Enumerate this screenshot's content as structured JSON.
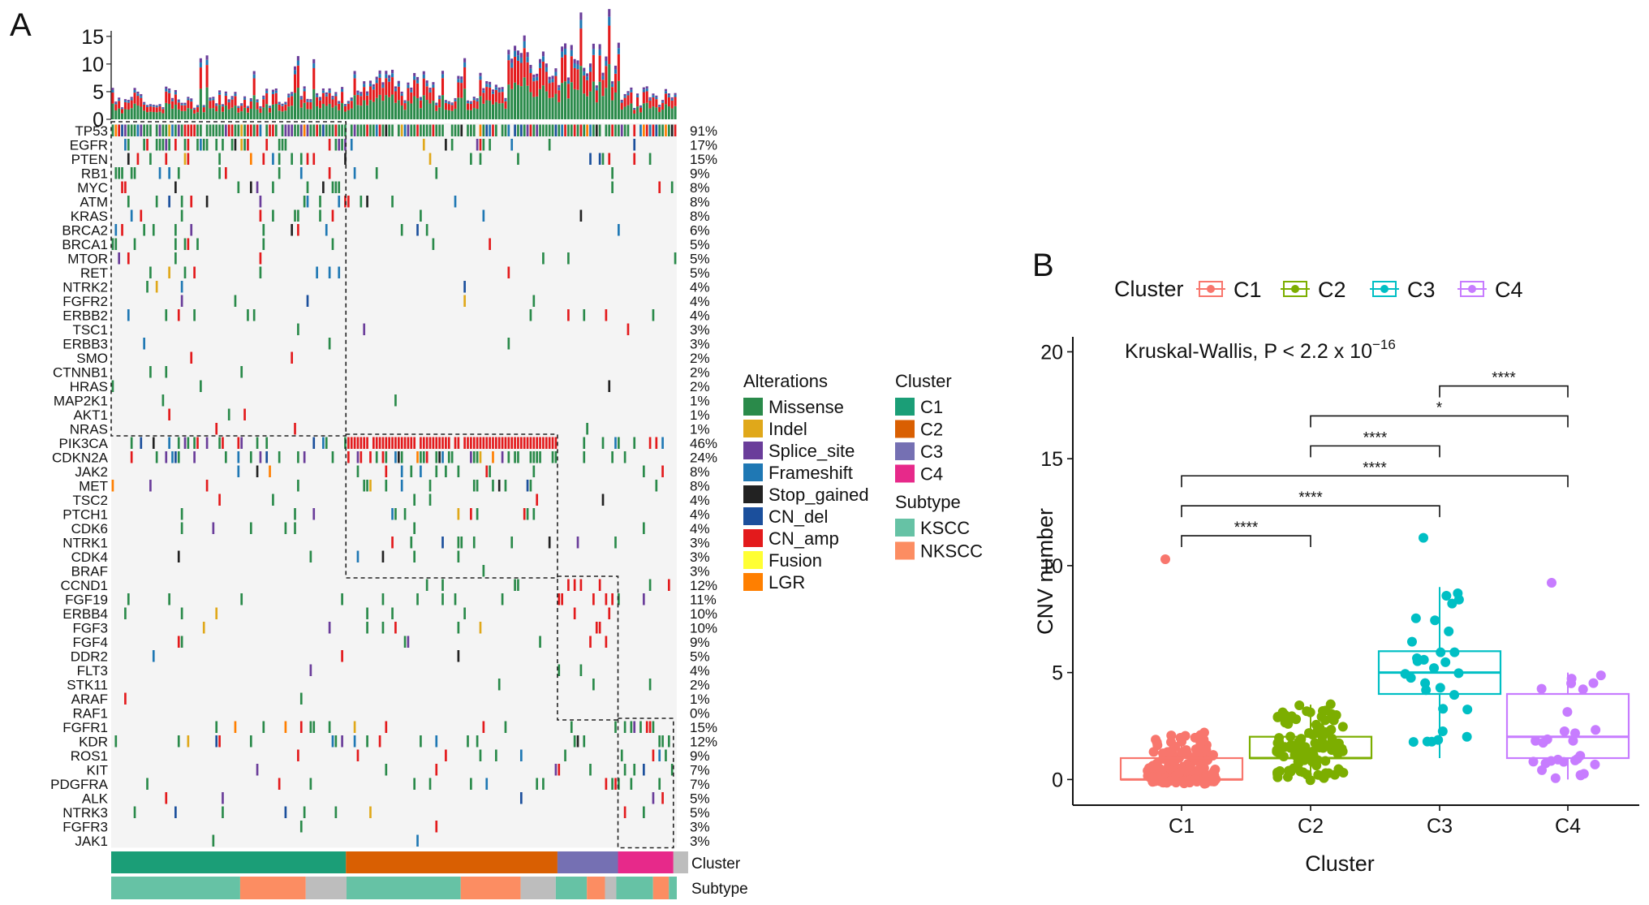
{
  "panel_labels": {
    "a": "A",
    "b": "B"
  },
  "chart_data": [
    {
      "type": "heatmap",
      "panel": "A",
      "top_bar": {
        "yticks": [
          "15",
          "10",
          "5",
          "0"
        ],
        "ylim": [
          0,
          16
        ]
      },
      "genes": [
        {
          "name": "TP53",
          "pct": "91%"
        },
        {
          "name": "EGFR",
          "pct": "17%"
        },
        {
          "name": "PTEN",
          "pct": "15%"
        },
        {
          "name": "RB1",
          "pct": "9%"
        },
        {
          "name": "MYC",
          "pct": "8%"
        },
        {
          "name": "ATM",
          "pct": "8%"
        },
        {
          "name": "KRAS",
          "pct": "8%"
        },
        {
          "name": "BRCA2",
          "pct": "6%"
        },
        {
          "name": "BRCA1",
          "pct": "5%"
        },
        {
          "name": "MTOR",
          "pct": "5%"
        },
        {
          "name": "RET",
          "pct": "5%"
        },
        {
          "name": "NTRK2",
          "pct": "4%"
        },
        {
          "name": "FGFR2",
          "pct": "4%"
        },
        {
          "name": "ERBB2",
          "pct": "4%"
        },
        {
          "name": "TSC1",
          "pct": "3%"
        },
        {
          "name": "ERBB3",
          "pct": "3%"
        },
        {
          "name": "SMO",
          "pct": "2%"
        },
        {
          "name": "CTNNB1",
          "pct": "2%"
        },
        {
          "name": "HRAS",
          "pct": "2%"
        },
        {
          "name": "MAP2K1",
          "pct": "1%"
        },
        {
          "name": "AKT1",
          "pct": "1%"
        },
        {
          "name": "NRAS",
          "pct": "1%"
        },
        {
          "name": "PIK3CA",
          "pct": "46%"
        },
        {
          "name": "CDKN2A",
          "pct": "24%"
        },
        {
          "name": "JAK2",
          "pct": "8%"
        },
        {
          "name": "MET",
          "pct": "8%"
        },
        {
          "name": "TSC2",
          "pct": "4%"
        },
        {
          "name": "PTCH1",
          "pct": "4%"
        },
        {
          "name": "CDK6",
          "pct": "4%"
        },
        {
          "name": "NTRK1",
          "pct": "3%"
        },
        {
          "name": "CDK4",
          "pct": "3%"
        },
        {
          "name": "BRAF",
          "pct": "3%"
        },
        {
          "name": "CCND1",
          "pct": "12%"
        },
        {
          "name": "FGF19",
          "pct": "11%"
        },
        {
          "name": "ERBB4",
          "pct": "10%"
        },
        {
          "name": "FGF3",
          "pct": "10%"
        },
        {
          "name": "FGF4",
          "pct": "9%"
        },
        {
          "name": "DDR2",
          "pct": "5%"
        },
        {
          "name": "FLT3",
          "pct": "4%"
        },
        {
          "name": "STK11",
          "pct": "2%"
        },
        {
          "name": "ARAF",
          "pct": "1%"
        },
        {
          "name": "RAF1",
          "pct": "0%"
        },
        {
          "name": "FGFR1",
          "pct": "15%"
        },
        {
          "name": "KDR",
          "pct": "12%"
        },
        {
          "name": "ROS1",
          "pct": "9%"
        },
        {
          "name": "KIT",
          "pct": "7%"
        },
        {
          "name": "PDGFRA",
          "pct": "7%"
        },
        {
          "name": "ALK",
          "pct": "5%"
        },
        {
          "name": "NTRK3",
          "pct": "5%"
        },
        {
          "name": "FGFR3",
          "pct": "3%"
        },
        {
          "name": "JAK1",
          "pct": "3%"
        }
      ],
      "annotation_rows": [
        "Cluster",
        "Subtype"
      ],
      "cluster_track": [
        {
          "label": "C1",
          "fraction": 0.415
        },
        {
          "label": "C2",
          "fraction": 0.374
        },
        {
          "label": "C3",
          "fraction": 0.107
        },
        {
          "label": "C4",
          "fraction": 0.098
        },
        {
          "label": "NA",
          "fraction": 0.026
        }
      ],
      "subtype_track": [
        {
          "label": "KSCC",
          "fraction": 0.228
        },
        {
          "label": "NKSCC",
          "fraction": 0.116
        },
        {
          "label": "NA",
          "fraction": 0.072
        },
        {
          "label": "KSCC",
          "fraction": 0.202
        },
        {
          "label": "NKSCC",
          "fraction": 0.106
        },
        {
          "label": "NA",
          "fraction": 0.062
        },
        {
          "label": "KSCC",
          "fraction": 0.055
        },
        {
          "label": "NKSCC",
          "fraction": 0.032
        },
        {
          "label": "NA",
          "fraction": 0.02
        },
        {
          "label": "KSCC",
          "fraction": 0.065
        },
        {
          "label": "NKSCC",
          "fraction": 0.028
        },
        {
          "label": "KSCC",
          "fraction": 0.014
        }
      ],
      "gene_blocks": [
        {
          "rows": [
            0,
            21
          ],
          "samples": [
            0.0,
            0.415
          ]
        },
        {
          "rows": [
            22,
            31
          ],
          "samples": [
            0.415,
            0.789
          ]
        },
        {
          "rows": [
            32,
            41
          ],
          "samples": [
            0.789,
            0.896
          ]
        },
        {
          "rows": [
            42,
            50
          ],
          "samples": [
            0.896,
            0.994
          ]
        }
      ],
      "legend_alterations": {
        "title": "Alterations",
        "items": [
          {
            "label": "Missense",
            "color": "#2a8a4a"
          },
          {
            "label": "Indel",
            "color": "#e0a81a"
          },
          {
            "label": "Splice_site",
            "color": "#6a3d9a"
          },
          {
            "label": "Frameshift",
            "color": "#1f78b4"
          },
          {
            "label": "Stop_gained",
            "color": "#222222"
          },
          {
            "label": "CN_del",
            "color": "#1b4f9c"
          },
          {
            "label": "CN_amp",
            "color": "#e31a1c"
          },
          {
            "label": "Fusion",
            "color": "#ffff33"
          },
          {
            "label": "LGR",
            "color": "#ff7f00"
          }
        ]
      },
      "legend_cluster": {
        "title": "Cluster",
        "items": [
          {
            "label": "C1",
            "color": "#1b9e77"
          },
          {
            "label": "C2",
            "color": "#d95f02"
          },
          {
            "label": "C3",
            "color": "#7570b3"
          },
          {
            "label": "C4",
            "color": "#e7298a"
          }
        ]
      },
      "legend_subtype": {
        "title": "Subtype",
        "items": [
          {
            "label": "KSCC",
            "color": "#66c2a5"
          },
          {
            "label": "NKSCC",
            "color": "#fc8d62"
          }
        ]
      }
    },
    {
      "type": "box",
      "panel": "B",
      "legend_title": "Cluster",
      "annotation": "Kruskal-Wallis, P < 2.2 x 10",
      "annotation_exponent": "−16",
      "xlabel": "Cluster",
      "ylabel": "CNV number",
      "ylim": [
        -1.2,
        20.7
      ],
      "yticks": [
        "0",
        "5",
        "10",
        "15",
        "20"
      ],
      "categories": [
        "C1",
        "C2",
        "C3",
        "C4"
      ],
      "colors": {
        "C1": "#f8766d",
        "C2": "#7cae00",
        "C3": "#00bfc4",
        "C4": "#c77cff"
      },
      "boxes": [
        {
          "category": "C1",
          "q1": 0,
          "median": 0,
          "q3": 1,
          "whisker_low": 0,
          "whisker_high": 2
        },
        {
          "category": "C2",
          "q1": 1,
          "median": 1,
          "q3": 2,
          "whisker_low": 0,
          "whisker_high": 3.5
        },
        {
          "category": "C3",
          "q1": 4,
          "median": 5,
          "q3": 6,
          "whisker_low": 1,
          "whisker_high": 9
        },
        {
          "category": "C4",
          "q1": 1,
          "median": 2,
          "q3": 4,
          "whisker_low": 0,
          "whisker_high": 5
        }
      ],
      "outliers": [
        {
          "category": "C1",
          "value": 10.3
        },
        {
          "category": "C3",
          "value": 11.3
        },
        {
          "category": "C4",
          "value": 9.2
        }
      ],
      "comparisons": [
        {
          "from": "C3",
          "to": "C4",
          "y": 18.4,
          "label": "****"
        },
        {
          "from": "C2",
          "to": "C4",
          "y": 17.0,
          "label": "*"
        },
        {
          "from": "C2",
          "to": "C3",
          "y": 15.6,
          "label": "****"
        },
        {
          "from": "C1",
          "to": "C4",
          "y": 14.2,
          "label": "****"
        },
        {
          "from": "C1",
          "to": "C3",
          "y": 12.8,
          "label": "****"
        },
        {
          "from": "C1",
          "to": "C2",
          "y": 11.4,
          "label": "****"
        }
      ]
    }
  ]
}
